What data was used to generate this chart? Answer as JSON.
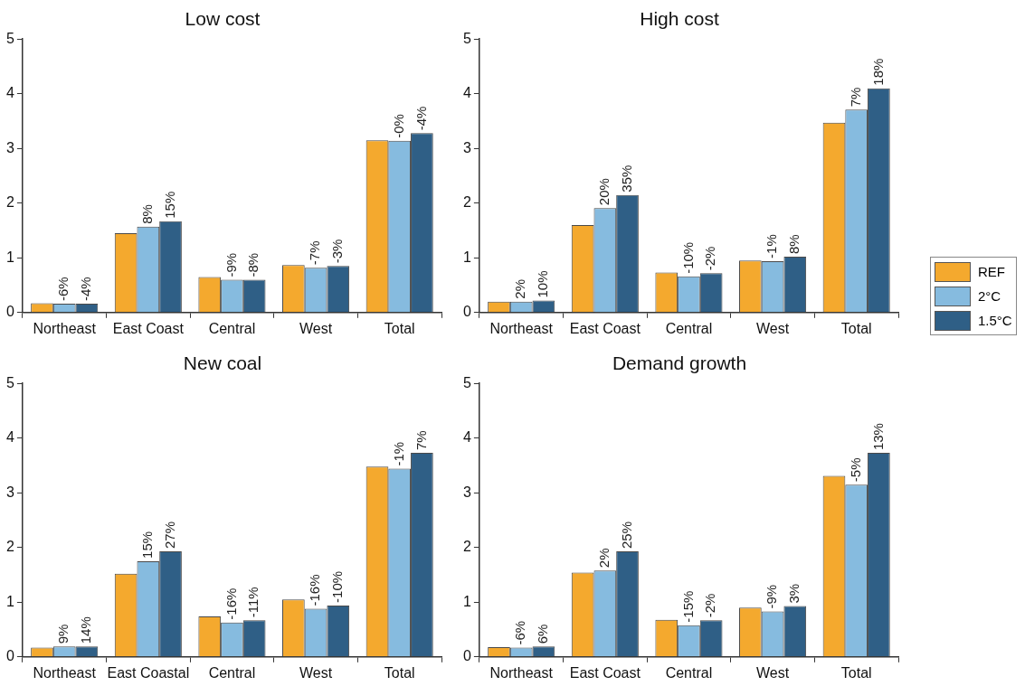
{
  "chart_data": [
    {
      "type": "bar",
      "title": "Low cost",
      "categories": [
        "Northeast",
        "East Coast",
        "Central",
        "West",
        "Total"
      ],
      "ylim": [
        0,
        5
      ],
      "yticks": [
        0,
        1,
        2,
        3,
        4,
        5
      ],
      "grid": false,
      "legend": false,
      "series": [
        {
          "color": "#f4a92e",
          "values": [
            0.17,
            1.45,
            0.65,
            0.87,
            3.15
          ]
        },
        {
          "color": "#86bbdf",
          "values": [
            0.16,
            1.57,
            0.6,
            0.82,
            3.14
          ]
        },
        {
          "color": "#2f5f86",
          "values": [
            0.16,
            1.67,
            0.6,
            0.85,
            3.28
          ]
        }
      ],
      "annotations": [
        "-6%",
        "-4%",
        "8%",
        "15%",
        "-9%",
        "-8%",
        "-7%",
        "-3%",
        "-0%",
        "-4%"
      ]
    },
    {
      "type": "bar",
      "title": "High cost",
      "categories": [
        "Northeast",
        "East Coast",
        "Central",
        "West",
        "Total"
      ],
      "ylim": [
        0,
        5
      ],
      "yticks": [
        0,
        1,
        2,
        3,
        4,
        5
      ],
      "grid": false,
      "legend": "right",
      "series": [
        {
          "name": "REF",
          "color": "#f4a92e",
          "values": [
            0.2,
            1.6,
            0.73,
            0.95,
            3.47
          ]
        },
        {
          "name": "2°C",
          "color": "#86bbdf",
          "values": [
            0.2,
            1.91,
            0.66,
            0.94,
            3.71
          ]
        },
        {
          "name": "1.5°C",
          "color": "#2f5f86",
          "values": [
            0.22,
            2.15,
            0.72,
            1.02,
            4.1
          ]
        }
      ],
      "annotations": [
        "2%",
        "10%",
        "20%",
        "35%",
        "-10%",
        "-2%",
        "-1%",
        "8%",
        "7%",
        "18%"
      ]
    },
    {
      "type": "bar",
      "title": "New coal",
      "categories": [
        "Northeast",
        "East Coastal",
        "Central",
        "West",
        "Total"
      ],
      "ylim": [
        0,
        5
      ],
      "yticks": [
        0,
        1,
        2,
        3,
        4,
        5
      ],
      "grid": false,
      "legend": false,
      "series": [
        {
          "color": "#f4a92e",
          "values": [
            0.17,
            1.52,
            0.74,
            1.05,
            3.48
          ]
        },
        {
          "color": "#86bbdf",
          "values": [
            0.19,
            1.75,
            0.63,
            0.88,
            3.44
          ]
        },
        {
          "color": "#2f5f86",
          "values": [
            0.19,
            1.93,
            0.67,
            0.94,
            3.73
          ]
        }
      ],
      "annotations": [
        "9%",
        "14%",
        "15%",
        "27%",
        "-16%",
        "-11%",
        "-16%",
        "-10%",
        "-1%",
        "7%"
      ]
    },
    {
      "type": "bar",
      "title": "Demand growth",
      "categories": [
        "Northeast",
        "East Coast",
        "Central",
        "West",
        "Total"
      ],
      "ylim": [
        0,
        5
      ],
      "yticks": [
        0,
        1,
        2,
        3,
        4,
        5
      ],
      "grid": false,
      "legend": false,
      "series": [
        {
          "color": "#f4a92e",
          "values": [
            0.18,
            1.54,
            0.68,
            0.9,
            3.31
          ]
        },
        {
          "color": "#86bbdf",
          "values": [
            0.17,
            1.58,
            0.58,
            0.83,
            3.15
          ]
        },
        {
          "color": "#2f5f86",
          "values": [
            0.19,
            1.93,
            0.67,
            0.93,
            3.73
          ]
        }
      ],
      "annotations": [
        "-6%",
        "6%",
        "2%",
        "25%",
        "-15%",
        "-2%",
        "-9%",
        "3%",
        "-5%",
        "13%"
      ]
    }
  ]
}
